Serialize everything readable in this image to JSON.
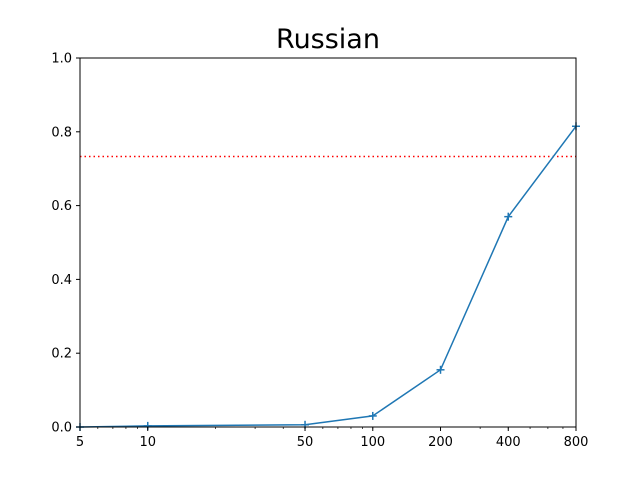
{
  "chart_data": {
    "type": "line",
    "title": "Russian",
    "xlabel": "",
    "ylabel": "",
    "x_scale": "log",
    "xlim": [
      5,
      800
    ],
    "ylim": [
      0,
      1.0
    ],
    "x_ticks": [
      5,
      10,
      50,
      100,
      200,
      400,
      800
    ],
    "x_tick_labels": [
      "5",
      "10",
      "50",
      "100",
      "200",
      "400",
      "800"
    ],
    "y_ticks": [
      0,
      0.2,
      0.4,
      0.6,
      0.8,
      1.0
    ],
    "y_tick_labels": [
      "0.0",
      "0.2",
      "0.4",
      "0.6",
      "0.8",
      "1.0"
    ],
    "grid": false,
    "series": [
      {
        "color": "#1f77b4",
        "marker": "plus",
        "x": [
          5,
          10,
          50,
          100,
          200,
          400,
          800
        ],
        "y": [
          0.0,
          0.003,
          0.006,
          0.03,
          0.155,
          0.57,
          0.815
        ]
      }
    ],
    "reference_lines": [
      {
        "orientation": "horizontal",
        "y": 0.733,
        "color": "#ff0000",
        "style": "dotted"
      }
    ]
  }
}
